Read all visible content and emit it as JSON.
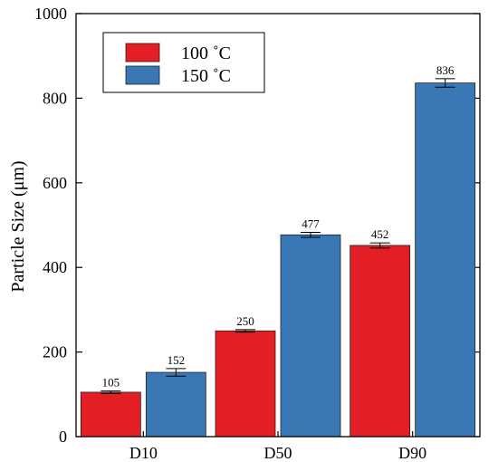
{
  "chart_data": {
    "type": "bar",
    "categories": [
      "D10",
      "D50",
      "D90"
    ],
    "series": [
      {
        "name": "100 ˚C",
        "color": "#e31e24",
        "values": [
          105,
          250,
          452
        ],
        "errors": [
          3,
          3,
          6
        ],
        "labels": [
          "105",
          "250",
          "452"
        ]
      },
      {
        "name": "150 ˚C",
        "color": "#3a78b5",
        "values": [
          152,
          477,
          836
        ],
        "errors": [
          9,
          6,
          10
        ],
        "labels": [
          "152",
          "477",
          "836"
        ]
      }
    ],
    "title": "",
    "xlabel": "",
    "ylabel": "Particle Size (μm)",
    "ylim": [
      0,
      1000
    ],
    "yticks": [
      0,
      200,
      400,
      600,
      800,
      1000
    ],
    "ytick_labels": [
      "0",
      "200",
      "400",
      "600",
      "800",
      "1000"
    ],
    "legend_position": "top-left",
    "grid": false
  }
}
